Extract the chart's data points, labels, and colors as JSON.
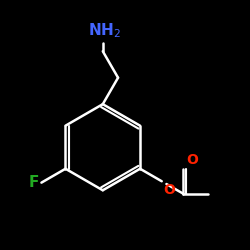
{
  "background_color": "#000000",
  "bond_color": "#ffffff",
  "bond_width": 1.8,
  "atom_colors": {
    "N": "#4466ff",
    "O": "#ff2200",
    "F": "#22aa22",
    "C": "#ffffff"
  },
  "figsize": [
    2.5,
    2.5
  ],
  "dpi": 100
}
